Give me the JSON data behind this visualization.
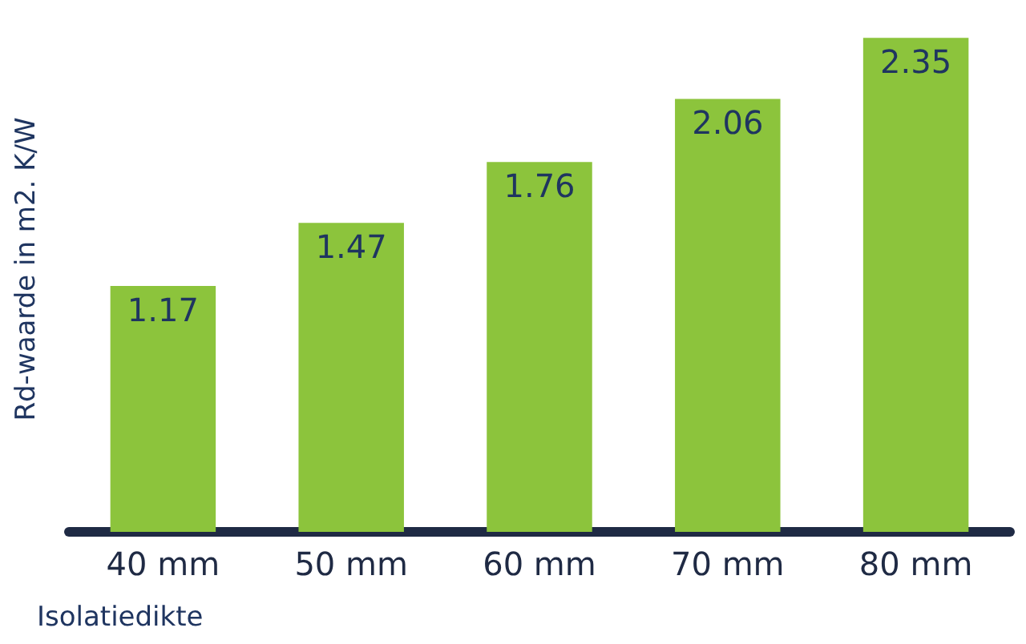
{
  "chart_data": {
    "type": "bar",
    "xlabel": "Isolatiedikte",
    "ylabel": "Rd-waarde in m2. K/W",
    "categories": [
      "40 mm",
      "50 mm",
      "60 mm",
      "70 mm",
      "80 mm"
    ],
    "values": [
      1.17,
      1.47,
      1.76,
      2.06,
      2.35
    ],
    "color": "#8cc43c",
    "data_labels": true,
    "grid": false
  }
}
